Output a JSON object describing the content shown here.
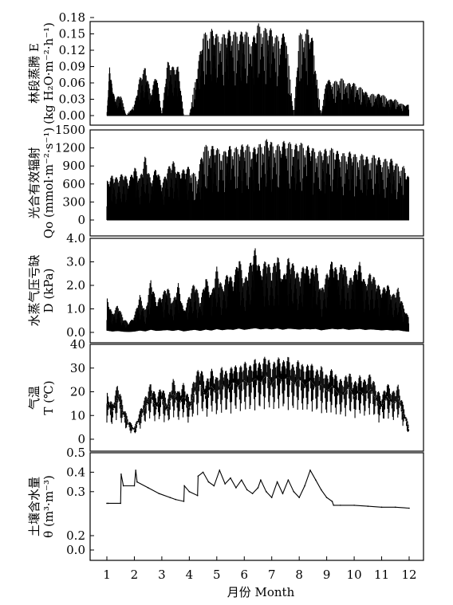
{
  "chart_data": {
    "type": "line",
    "xlabel": "月份 Month",
    "x_ticks": [
      1,
      2,
      3,
      4,
      5,
      6,
      7,
      8,
      9,
      10,
      11,
      12
    ],
    "xlim": [
      1,
      12
    ],
    "grid": false,
    "panels": [
      {
        "id": "E",
        "ylabel_line1": "林段蒸腾 E",
        "ylabel_line2": "(kg H₂O·m⁻²·h⁻¹)",
        "ylim": [
          0,
          0.18
        ],
        "yticks": [
          "0.00",
          "0.03",
          "0.06",
          "0.09",
          "0.12",
          "0.15",
          "0.18"
        ],
        "series": [
          {
            "x": [
              1.0,
              1.1,
              1.2,
              1.3,
              1.5,
              1.7,
              2.0,
              2.2,
              2.4,
              2.6,
              2.8,
              3.0,
              3.2,
              3.4,
              3.6,
              3.8,
              4.0,
              4.3,
              4.5,
              4.8,
              5.0,
              5.3,
              5.5,
              5.8,
              6.0,
              6.3,
              6.5,
              6.8,
              7.0,
              7.3,
              7.5,
              7.8,
              8.0,
              8.3,
              8.5,
              8.8,
              9.0,
              9.2,
              9.5,
              9.8,
              10.0,
              10.3,
              10.5,
              10.8,
              11.0,
              11.3,
              11.5,
              11.8,
              12.0
            ],
            "y": [
              0.0,
              0.09,
              0.05,
              0.03,
              0.04,
              0.0,
              0.02,
              0.07,
              0.09,
              0.04,
              0.08,
              0.0,
              0.1,
              0.09,
              0.09,
              0.0,
              0.0,
              0.09,
              0.15,
              0.16,
              0.15,
              0.15,
              0.16,
              0.15,
              0.16,
              0.14,
              0.17,
              0.16,
              0.16,
              0.14,
              0.16,
              0.0,
              0.15,
              0.16,
              0.14,
              0.0,
              0.07,
              0.06,
              0.07,
              0.06,
              0.06,
              0.05,
              0.04,
              0.04,
              0.04,
              0.03,
              0.03,
              0.02,
              0.02
            ]
          }
        ]
      },
      {
        "id": "Q",
        "ylabel_line1": "光合有效辐射",
        "ylabel_line2": "Qo (mmol·m⁻²·s⁻¹)",
        "ylim": [
          0,
          1500
        ],
        "yticks": [
          "0",
          "300",
          "600",
          "900",
          "1200",
          "1500"
        ],
        "series": [
          {
            "x": [
              1.0,
              1.2,
              1.4,
              1.6,
              1.8,
              2.0,
              2.2,
              2.4,
              2.6,
              2.8,
              3.0,
              3.2,
              3.4,
              3.6,
              3.8,
              4.0,
              4.3,
              4.5,
              4.8,
              5.0,
              5.3,
              5.5,
              5.8,
              6.0,
              6.3,
              6.5,
              6.8,
              7.0,
              7.3,
              7.5,
              7.8,
              8.0,
              8.3,
              8.5,
              8.8,
              9.0,
              9.3,
              9.5,
              9.8,
              10.0,
              10.3,
              10.5,
              10.8,
              11.0,
              11.3,
              11.5,
              11.8,
              12.0
            ],
            "y": [
              650,
              750,
              700,
              800,
              650,
              900,
              700,
              1080,
              650,
              900,
              600,
              850,
              1000,
              800,
              850,
              900,
              700,
              1250,
              1250,
              1200,
              1150,
              1250,
              1200,
              1300,
              1200,
              1250,
              1350,
              1300,
              1250,
              1350,
              1250,
              1300,
              1250,
              1200,
              1150,
              1200,
              1200,
              1100,
              1150,
              1100,
              1100,
              1050,
              1100,
              1000,
              1050,
              950,
              900,
              700
            ]
          }
        ]
      },
      {
        "id": "D",
        "ylabel_line1": "水蒸气压亏缺",
        "ylabel_line2": "D (kPa)",
        "ylim": [
          0,
          4.0
        ],
        "yticks": [
          "0.0",
          "1.0",
          "2.0",
          "3.0",
          "4.0"
        ],
        "series": [
          {
            "x": [
              1.0,
              1.2,
              1.4,
              1.6,
              1.8,
              2.0,
              2.2,
              2.4,
              2.6,
              2.8,
              3.0,
              3.2,
              3.4,
              3.6,
              3.8,
              4.0,
              4.2,
              4.4,
              4.6,
              4.8,
              5.0,
              5.2,
              5.4,
              5.6,
              5.8,
              6.0,
              6.2,
              6.4,
              6.6,
              6.8,
              7.0,
              7.2,
              7.4,
              7.6,
              7.8,
              8.0,
              8.2,
              8.4,
              8.6,
              8.8,
              9.0,
              9.2,
              9.4,
              9.6,
              9.8,
              10.0,
              10.2,
              10.4,
              10.6,
              10.8,
              11.0,
              11.2,
              11.4,
              11.6,
              11.8,
              12.0
            ],
            "y": [
              1.5,
              0.8,
              1.2,
              0.6,
              0.4,
              0.7,
              1.6,
              0.9,
              2.3,
              1.3,
              1.6,
              2.0,
              1.3,
              2.1,
              0.9,
              1.6,
              2.2,
              1.3,
              2.4,
              1.6,
              2.8,
              1.9,
              2.6,
              2.2,
              3.3,
              2.2,
              2.9,
              3.6,
              2.6,
              3.2,
              2.6,
              3.4,
              2.3,
              3.2,
              2.9,
              2.4,
              3.0,
              2.6,
              3.0,
              1.8,
              2.5,
              3.1,
              2.6,
              3.1,
              2.2,
              2.6,
              3.0,
              2.1,
              2.6,
              2.2,
              1.8,
              2.1,
              1.6,
              1.9,
              1.1,
              0.6
            ]
          }
        ]
      },
      {
        "id": "T",
        "ylabel_line1": "气温",
        "ylabel_line2": "T (℃)",
        "ylim": [
          0,
          40
        ],
        "yticks": [
          "0",
          "10",
          "20",
          "30",
          "40"
        ],
        "series": [
          {
            "x": [
              1.0,
              1.2,
              1.4,
              1.6,
              1.8,
              2.0,
              2.2,
              2.4,
              2.6,
              2.8,
              3.0,
              3.2,
              3.4,
              3.6,
              3.8,
              4.0,
              4.2,
              4.4,
              4.6,
              4.8,
              5.0,
              5.2,
              5.4,
              5.6,
              5.8,
              6.0,
              6.2,
              6.4,
              6.6,
              6.8,
              7.0,
              7.2,
              7.4,
              7.6,
              7.8,
              8.0,
              8.2,
              8.4,
              8.6,
              8.8,
              9.0,
              9.2,
              9.4,
              9.6,
              9.8,
              10.0,
              10.2,
              10.4,
              10.6,
              10.8,
              11.0,
              11.2,
              11.4,
              11.6,
              11.8,
              12.0
            ],
            "y": [
              20,
              15,
              24,
              14,
              8,
              5,
              12,
              18,
              24,
              18,
              23,
              16,
              26,
              20,
              24,
              17,
              27,
              31,
              24,
              30,
              26,
              31,
              28,
              32,
              30,
              33,
              31,
              34,
              32,
              36,
              31,
              35,
              33,
              35,
              31,
              34,
              30,
              33,
              29,
              31,
              27,
              30,
              26,
              25,
              29,
              24,
              27,
              25,
              28,
              22,
              18,
              24,
              20,
              23,
              14,
              5
            ]
          }
        ]
      },
      {
        "id": "theta",
        "ylabel_line1": "土壤含水量",
        "ylabel_line2": "θ (m³·m⁻³)",
        "ylim": [
          0,
          0.5
        ],
        "yticks": [
          "0.0",
          "0.2",
          "0.3",
          "0.4",
          "0.5"
        ],
        "series": [
          {
            "x": [
              1.0,
              1.05,
              1.5,
              1.52,
              1.6,
              2.0,
              2.05,
              2.1,
              2.5,
              2.9,
              3.3,
              3.5,
              3.8,
              3.82,
              4.0,
              4.3,
              4.32,
              4.5,
              4.7,
              4.9,
              5.1,
              5.3,
              5.5,
              5.7,
              5.9,
              6.1,
              6.3,
              6.5,
              6.6,
              6.8,
              7.0,
              7.2,
              7.4,
              7.6,
              7.8,
              8.0,
              8.2,
              8.4,
              8.6,
              8.8,
              9.0,
              9.2,
              9.25,
              9.5,
              10.0,
              10.5,
              11.0,
              11.5,
              12.0
            ],
            "y": [
              0.24,
              0.24,
              0.24,
              0.39,
              0.33,
              0.33,
              0.41,
              0.35,
              0.32,
              0.29,
              0.27,
              0.26,
              0.25,
              0.33,
              0.3,
              0.28,
              0.38,
              0.4,
              0.35,
              0.33,
              0.41,
              0.34,
              0.37,
              0.32,
              0.36,
              0.31,
              0.29,
              0.32,
              0.36,
              0.3,
              0.27,
              0.35,
              0.29,
              0.36,
              0.3,
              0.27,
              0.33,
              0.41,
              0.36,
              0.31,
              0.27,
              0.25,
              0.23,
              0.23,
              0.23,
              0.225,
              0.22,
              0.22,
              0.215
            ]
          }
        ]
      }
    ]
  }
}
